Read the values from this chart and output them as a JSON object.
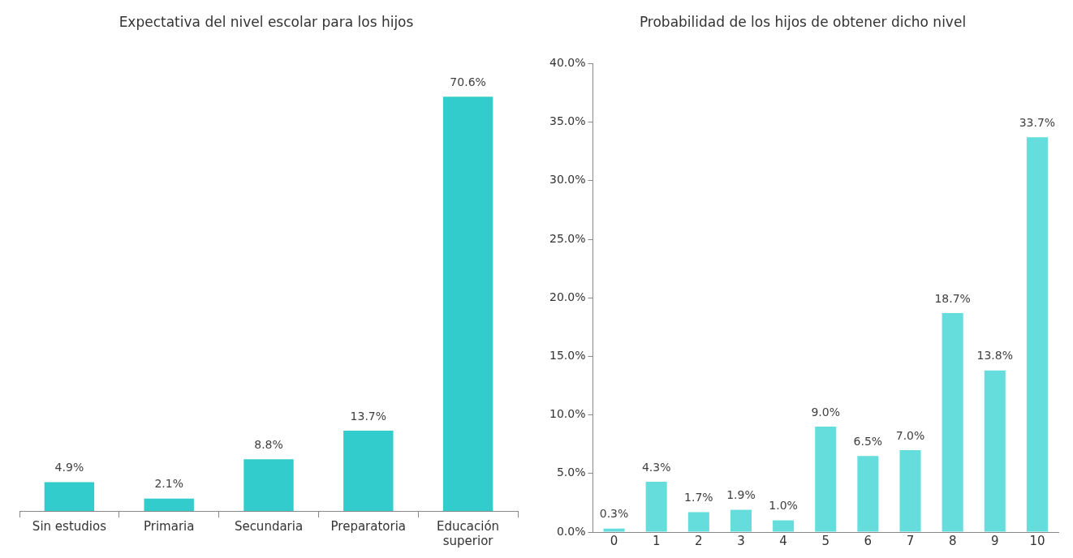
{
  "chart_data": [
    {
      "type": "bar",
      "title": "Expectativa del nivel escolar para los hijos",
      "categories": [
        "Sin estudios",
        "Primaria",
        "Secundaria",
        "Preparatoria",
        "Educación superior"
      ],
      "values": [
        4.9,
        2.1,
        8.8,
        13.7,
        70.6
      ],
      "value_labels": [
        "4.9%",
        "2.1%",
        "8.8%",
        "13.7%",
        "70.6%"
      ],
      "color": "#33cccc",
      "tick_labels": "x"
    },
    {
      "type": "bar",
      "title": "Probabilidad de los hijos de obtener dicho nivel",
      "categories": [
        "0",
        "1",
        "2",
        "3",
        "4",
        "5",
        "6",
        "7",
        "8",
        "9",
        "10"
      ],
      "values": [
        0.3,
        4.3,
        1.7,
        1.9,
        1.0,
        9.0,
        6.5,
        7.0,
        18.7,
        13.8,
        33.7
      ],
      "value_labels": [
        "0.3%",
        "4.3%",
        "1.7%",
        "1.9%",
        "1.0%",
        "9.0%",
        "6.5%",
        "7.0%",
        "18.7%",
        "13.8%",
        "33.7%"
      ],
      "color": "#66dddd",
      "ylim": [
        0,
        40
      ],
      "yticks": [
        {
          "value": 0,
          "label": "0.0%"
        },
        {
          "value": 5,
          "label": "5.0%"
        },
        {
          "value": 10,
          "label": "10.0%"
        },
        {
          "value": 15,
          "label": "15.0%"
        },
        {
          "value": 20,
          "label": "20.0%"
        },
        {
          "value": 25,
          "label": "25.0%"
        },
        {
          "value": 30,
          "label": "30.0%"
        },
        {
          "value": 35,
          "label": "35.0%"
        },
        {
          "value": 40,
          "label": "40.0%"
        }
      ]
    }
  ]
}
